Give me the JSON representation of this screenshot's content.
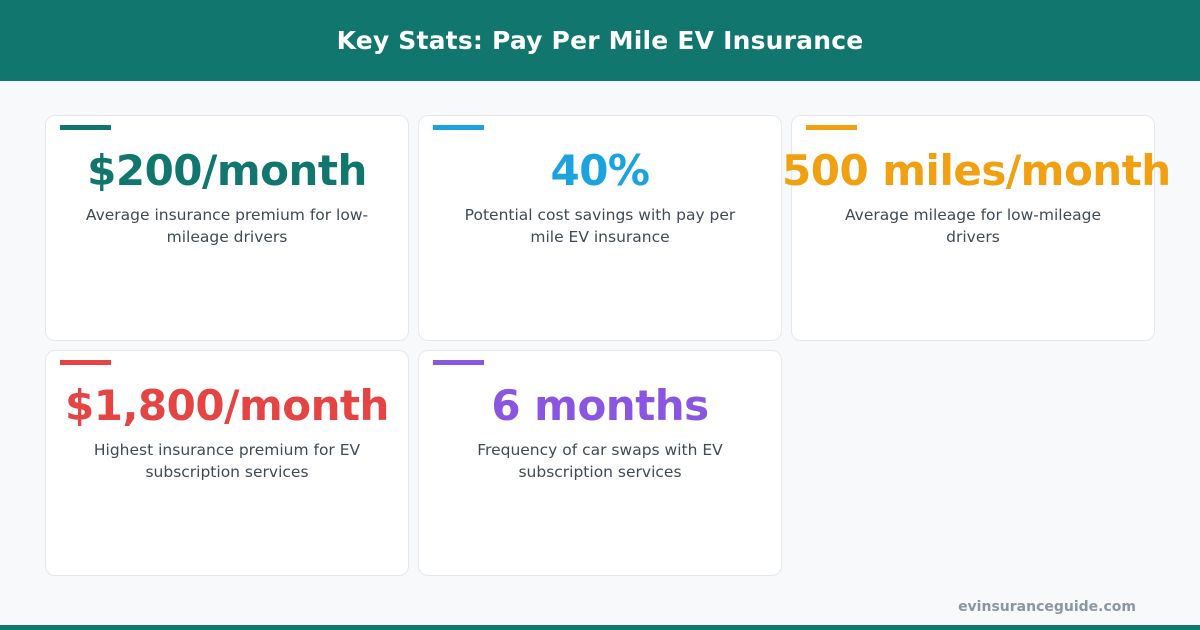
{
  "header": {
    "title": "Key Stats: Pay Per Mile EV Insurance"
  },
  "stats": [
    {
      "value": "$200/month",
      "description": "Average insurance premium for low-mileage drivers",
      "color": "#10766e"
    },
    {
      "value": "40%",
      "description": "Potential cost savings with pay per mile EV insurance",
      "color": "#1aa3df"
    },
    {
      "value": "500 miles/month",
      "description": "Average mileage for low-mileage drivers",
      "color": "#f0a011"
    },
    {
      "value": "$1,800/month",
      "description": "Highest insurance premium for EV subscription services",
      "color": "#e54444"
    },
    {
      "value": "6 months",
      "description": "Frequency of car swaps with EV subscription services",
      "color": "#8a55e0"
    }
  ],
  "footer": {
    "site": "evinsuranceguide.com"
  }
}
